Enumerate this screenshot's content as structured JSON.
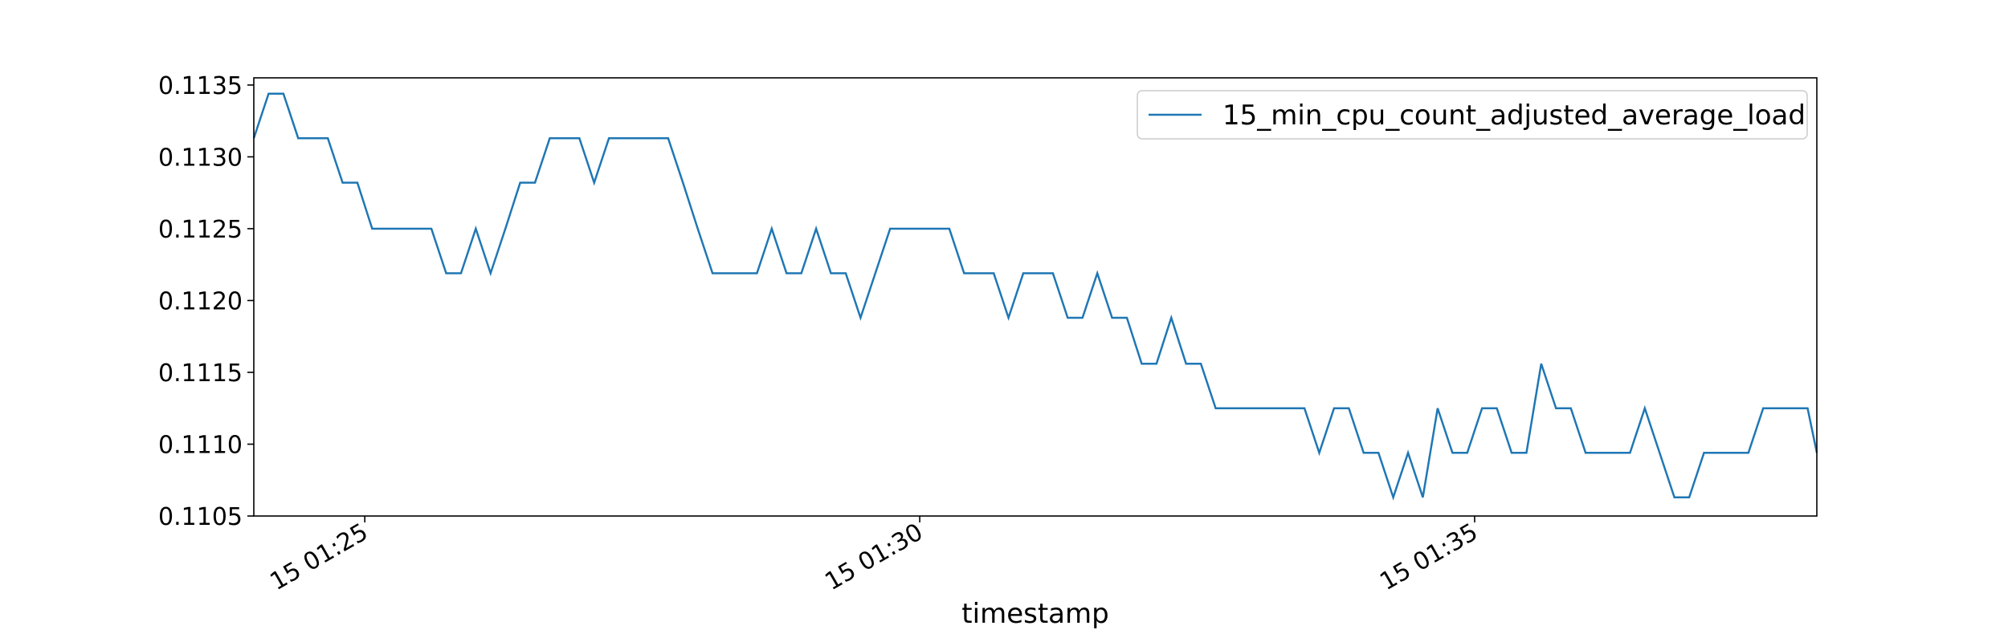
{
  "chart_data": {
    "type": "line",
    "title": "",
    "xlabel": "timestamp",
    "ylabel": "",
    "x_tick_labels": [
      "15 01:25",
      "15 01:30",
      "15 01:35"
    ],
    "x_tick_values": [
      "01:25",
      "01:30",
      "01:35"
    ],
    "y_tick_labels": [
      "0.1105",
      "0.1110",
      "0.1115",
      "0.1120",
      "0.1125",
      "0.1130",
      "0.1135"
    ],
    "y_tick_values": [
      0.1105,
      0.111,
      0.1115,
      0.112,
      0.1125,
      0.113,
      0.1135
    ],
    "xlim": [
      "01:24:00",
      "01:38:05"
    ],
    "ylim": [
      0.1105,
      0.11355
    ],
    "grid": false,
    "legend_position": "top-right",
    "series": [
      {
        "name": "15_min_cpu_count_adjusted_average_load",
        "color": "#1f77b4",
        "x": [
          "01:24:00",
          "01:24:08",
          "01:24:16",
          "01:24:24",
          "01:24:32",
          "01:24:40",
          "01:24:48",
          "01:24:56",
          "01:25:04",
          "01:25:12",
          "01:25:20",
          "01:25:28",
          "01:25:36",
          "01:25:44",
          "01:25:52",
          "01:26:00",
          "01:26:08",
          "01:26:16",
          "01:26:24",
          "01:26:32",
          "01:26:40",
          "01:26:48",
          "01:26:56",
          "01:27:04",
          "01:27:12",
          "01:27:20",
          "01:27:28",
          "01:27:36",
          "01:27:44",
          "01:27:52",
          "01:28:00",
          "01:28:08",
          "01:28:16",
          "01:28:24",
          "01:28:32",
          "01:28:40",
          "01:28:48",
          "01:28:56",
          "01:29:04",
          "01:29:12",
          "01:29:20",
          "01:29:28",
          "01:29:36",
          "01:29:44",
          "01:29:52",
          "01:30:00",
          "01:30:08",
          "01:30:16",
          "01:30:24",
          "01:30:32",
          "01:30:40",
          "01:30:48",
          "01:30:56",
          "01:31:04",
          "01:31:12",
          "01:31:20",
          "01:31:28",
          "01:31:36",
          "01:31:44",
          "01:31:52",
          "01:32:00",
          "01:32:08",
          "01:32:16",
          "01:32:24",
          "01:32:32",
          "01:32:40",
          "01:32:48",
          "01:32:56",
          "01:33:04",
          "01:33:12",
          "01:33:20",
          "01:33:28",
          "01:33:36",
          "01:33:44",
          "01:33:52",
          "01:34:00",
          "01:34:08",
          "01:34:16",
          "01:34:24",
          "01:34:32",
          "01:34:40",
          "01:34:48",
          "01:34:56",
          "01:35:04",
          "01:35:12",
          "01:35:20",
          "01:35:28",
          "01:35:36",
          "01:35:44",
          "01:35:52",
          "01:36:00",
          "01:36:08",
          "01:36:16",
          "01:36:24",
          "01:36:32",
          "01:36:40",
          "01:36:48",
          "01:36:56",
          "01:37:04",
          "01:37:12",
          "01:37:20",
          "01:37:28",
          "01:37:36",
          "01:37:44",
          "01:37:52",
          "01:38:00",
          "01:38:05"
        ],
        "y": [
          0.11313,
          0.11344,
          0.11344,
          0.11313,
          0.11313,
          0.11313,
          0.11282,
          0.11282,
          0.1125,
          0.1125,
          0.1125,
          0.1125,
          0.1125,
          0.11219,
          0.11219,
          0.1125,
          0.11219,
          0.1125,
          0.11282,
          0.11282,
          0.11313,
          0.11313,
          0.11313,
          0.11282,
          0.11313,
          0.11313,
          0.11313,
          0.11313,
          0.11313,
          0.11282,
          0.1125,
          0.11219,
          0.11219,
          0.11219,
          0.11219,
          0.1125,
          0.11219,
          0.11219,
          0.1125,
          0.11219,
          0.11219,
          0.11188,
          0.11219,
          0.1125,
          0.1125,
          0.1125,
          0.1125,
          0.1125,
          0.11219,
          0.11219,
          0.11219,
          0.11188,
          0.11219,
          0.11219,
          0.11219,
          0.11188,
          0.11188,
          0.11219,
          0.11188,
          0.11188,
          0.11156,
          0.11156,
          0.11188,
          0.11156,
          0.11156,
          0.11125,
          0.11125,
          0.11125,
          0.11125,
          0.11125,
          0.11125,
          0.11125,
          0.11094,
          0.11125,
          0.11125,
          0.11094,
          0.11094,
          0.11063,
          0.11094,
          0.11063,
          0.11125,
          0.11094,
          0.11094,
          0.11125,
          0.11125,
          0.11094,
          0.11094,
          0.11156,
          0.11125,
          0.11125,
          0.11094,
          0.11094,
          0.11094,
          0.11094,
          0.11125,
          0.11094,
          0.11063,
          0.11063,
          0.11094,
          0.11094,
          0.11094,
          0.11094,
          0.11125,
          0.11125,
          0.11125,
          0.11125,
          0.11094
        ]
      }
    ]
  }
}
